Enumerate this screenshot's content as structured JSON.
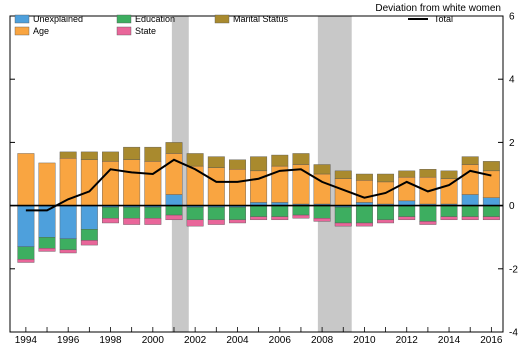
{
  "chart_data": {
    "type": "bar",
    "stacked": true,
    "ylabel": "Deviation from white women",
    "ylim": [
      -4,
      6
    ],
    "yticks": [
      -4,
      -2,
      0,
      2,
      4,
      6
    ],
    "x_tick_labels": [
      "1994",
      "1996",
      "1998",
      "2000",
      "2002",
      "2004",
      "2006",
      "2008",
      "2010",
      "2012",
      "2014",
      "2016"
    ],
    "categories": [
      "1994",
      "1995",
      "1996",
      "1997",
      "1998",
      "1999",
      "2000",
      "2001",
      "2002",
      "2003",
      "2004",
      "2005",
      "2006",
      "2007",
      "2008",
      "2009",
      "2010",
      "2011",
      "2012",
      "2013",
      "2014",
      "2015",
      "2016"
    ],
    "shaded_periods": [
      [
        2001.0,
        2001.6
      ],
      [
        2007.9,
        2009.3
      ]
    ],
    "legend_position": "top",
    "series": [
      {
        "name": "Unexplained",
        "color": "#4ea0dc",
        "values": [
          -1.3,
          -1.0,
          -1.05,
          -0.75,
          -0.05,
          -0.05,
          -0.05,
          0.35,
          -0.05,
          -0.05,
          -0.05,
          0.1,
          0.1,
          0.05,
          0.05,
          -0.05,
          0.1,
          0.05,
          0.15,
          0.05,
          0.05,
          0.35,
          0.25
        ]
      },
      {
        "name": "Age",
        "color": "#f9a541",
        "values": [
          1.65,
          1.35,
          1.5,
          1.45,
          1.4,
          1.45,
          1.4,
          1.3,
          1.25,
          1.2,
          1.15,
          1.0,
          1.15,
          1.25,
          0.95,
          0.85,
          0.7,
          0.7,
          0.75,
          0.85,
          0.8,
          0.95,
          0.85
        ]
      },
      {
        "name": "Education",
        "color": "#3dae60",
        "values": [
          -0.4,
          -0.35,
          -0.35,
          -0.35,
          -0.35,
          -0.35,
          -0.35,
          -0.3,
          -0.4,
          -0.4,
          -0.4,
          -0.35,
          -0.35,
          -0.3,
          -0.4,
          -0.5,
          -0.55,
          -0.45,
          -0.35,
          -0.5,
          -0.35,
          -0.35,
          -0.35
        ]
      },
      {
        "name": "State",
        "color": "#e9669a",
        "values": [
          -0.1,
          -0.1,
          -0.1,
          -0.15,
          -0.15,
          -0.2,
          -0.2,
          -0.15,
          -0.2,
          -0.15,
          -0.1,
          -0.1,
          -0.1,
          -0.1,
          -0.1,
          -0.1,
          -0.1,
          -0.1,
          -0.1,
          -0.1,
          -0.1,
          -0.1,
          -0.1
        ]
      },
      {
        "name": "Marital Status",
        "color": "#a98a2e",
        "values": [
          0.0,
          0.0,
          0.2,
          0.25,
          0.3,
          0.4,
          0.45,
          0.35,
          0.4,
          0.35,
          0.3,
          0.45,
          0.35,
          0.35,
          0.3,
          0.25,
          0.2,
          0.25,
          0.2,
          0.25,
          0.25,
          0.25,
          0.3
        ]
      }
    ],
    "line_series": {
      "name": "Total",
      "color": "#000000",
      "values": [
        -0.15,
        -0.15,
        0.2,
        0.45,
        1.15,
        1.05,
        1.0,
        1.45,
        1.15,
        0.75,
        0.75,
        0.85,
        1.1,
        1.15,
        0.75,
        0.5,
        0.25,
        0.4,
        0.75,
        0.45,
        0.65,
        1.1,
        0.95
      ]
    }
  }
}
